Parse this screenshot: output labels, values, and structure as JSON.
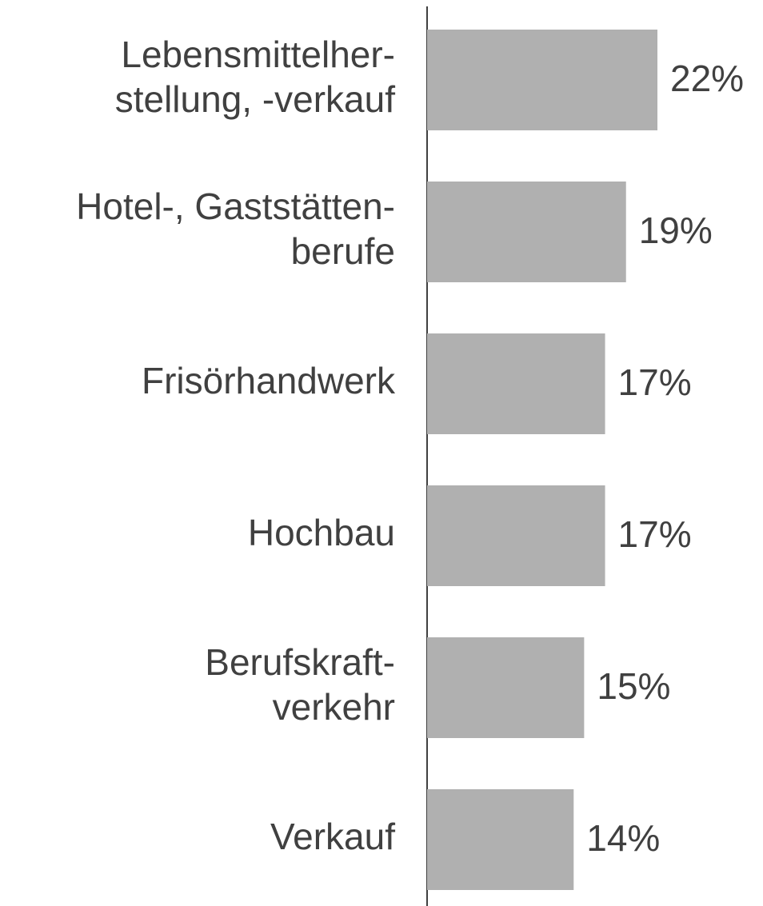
{
  "chart_data": {
    "type": "barh",
    "categories": [
      [
        "Lebensmittelher-",
        "stellung, -verkauf"
      ],
      [
        "Hotel-, Gaststätten-",
        "berufe"
      ],
      [
        "Frisörhandwerk"
      ],
      [
        "Hochbau"
      ],
      [
        "Berufskraft-",
        "verkehr"
      ],
      [
        "Verkauf"
      ]
    ],
    "values": [
      22,
      19,
      17,
      17,
      15,
      14
    ],
    "value_labels": [
      "22%",
      "19%",
      "17%",
      "17%",
      "15%",
      "14%"
    ],
    "color": "#b0b0b0",
    "xlim": [
      0,
      22
    ]
  }
}
